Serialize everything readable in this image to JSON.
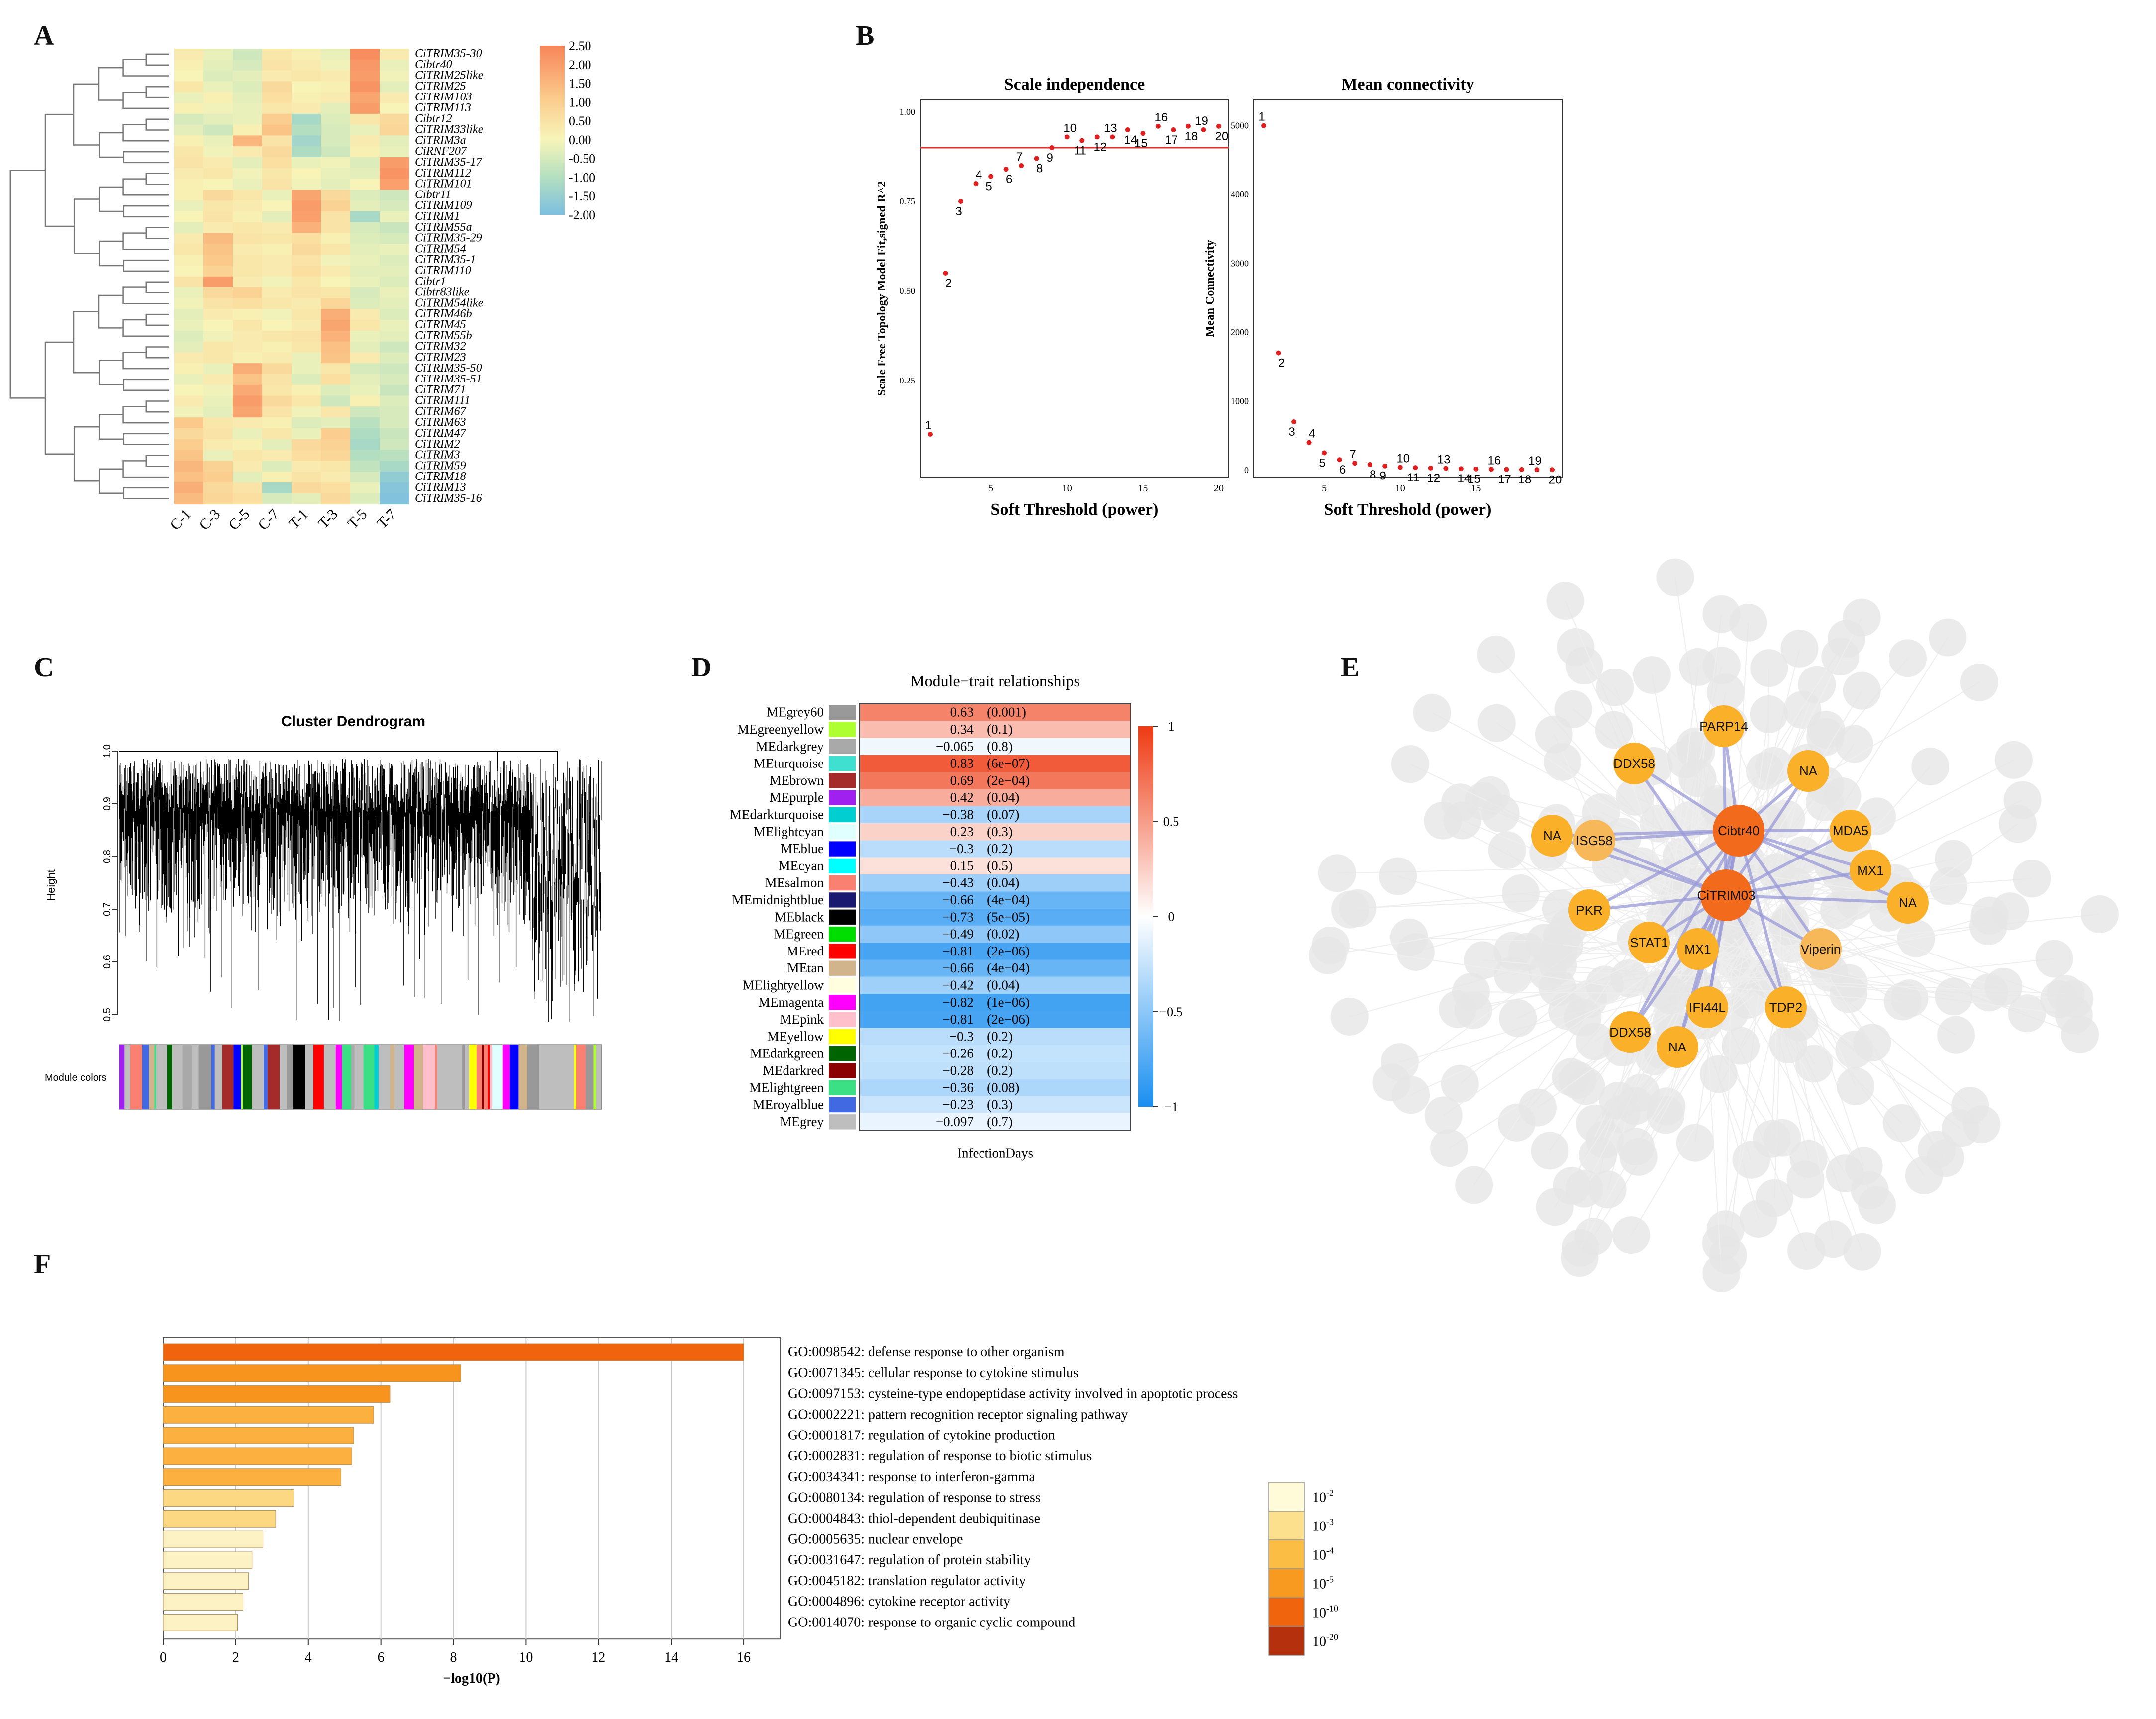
{
  "panel_labels": {
    "a": "A",
    "b": "B",
    "c": "C",
    "d": "D",
    "e": "E",
    "f": "F"
  },
  "heatmap": {
    "columns": [
      "C-1",
      "C-3",
      "C-5",
      "C-7",
      "T-1",
      "T-3",
      "T-5",
      "T-7"
    ],
    "rows": [
      "CiTRIM35-30",
      "Cibtr40",
      "CiTRIM25like",
      "CiTRIM25",
      "CiTRIM103",
      "CiTRIM113",
      "Cibtr12",
      "CiTRIM33like",
      "CiTRIM3a",
      "CiRNF207",
      "CiTRIM35-17",
      "CiTRIM112",
      "CiTRIM101",
      "Cibtr11",
      "CiTRIM109",
      "CiTRIM1",
      "CiTRIM55a",
      "CiTRIM35-29",
      "CiTRIM54",
      "CiTRIM35-1",
      "CiTRIM110",
      "Cibtr1",
      "Cibtr83like",
      "CiTRIM54like",
      "CiTRIM46b",
      "CiTRIM45",
      "CiTRIM55b",
      "CiTRIM32",
      "CiTRIM23",
      "CiTRIM35-50",
      "CiTRIM35-51",
      "CiTRIM71",
      "CiTRIM111",
      "CiTRIM67",
      "CiTRIM63",
      "CiTRIM47",
      "CiTRIM2",
      "CiTRIM3",
      "CiTRIM59",
      "CiTRIM18",
      "CiTRIM13",
      "CiTRIM35-16"
    ],
    "values": [
      [
        0.2,
        -0.2,
        -0.6,
        0.3,
        0.1,
        -0.2,
        2.3,
        0.2
      ],
      [
        0.1,
        -0.3,
        -0.5,
        0.4,
        0.2,
        -0.1,
        2.1,
        -0.2
      ],
      [
        0.0,
        -0.4,
        -0.3,
        0.2,
        0.3,
        0.2,
        2.0,
        -0.1
      ],
      [
        0.3,
        -0.2,
        -0.4,
        0.6,
        0.0,
        0.1,
        2.2,
        -0.3
      ],
      [
        -0.2,
        0.1,
        -0.3,
        0.5,
        0.1,
        0.2,
        1.8,
        0.2
      ],
      [
        0.1,
        -0.1,
        -0.2,
        0.3,
        0.2,
        -0.3,
        2.0,
        0.0
      ],
      [
        -0.5,
        -0.3,
        -0.2,
        0.9,
        -1.2,
        -0.4,
        0.3,
        0.6
      ],
      [
        -0.3,
        -0.6,
        0.1,
        1.1,
        -1.0,
        -0.5,
        -0.2,
        0.7
      ],
      [
        0.1,
        -0.2,
        1.4,
        0.4,
        -1.3,
        -0.5,
        0.2,
        -0.3
      ],
      [
        0.3,
        -0.1,
        0.2,
        0.6,
        -1.1,
        -0.6,
        0.1,
        -0.2
      ],
      [
        0.4,
        0.2,
        -0.3,
        0.5,
        -0.2,
        -0.1,
        -0.4,
        2.0
      ],
      [
        0.2,
        0.3,
        -0.1,
        0.3,
        0.0,
        -0.2,
        -0.3,
        2.2
      ],
      [
        0.1,
        0.0,
        -0.2,
        0.4,
        -0.1,
        -0.3,
        0.0,
        1.9
      ],
      [
        0.1,
        0.6,
        0.3,
        -0.2,
        1.8,
        0.6,
        -0.4,
        -0.6
      ],
      [
        -0.2,
        0.3,
        0.2,
        0.0,
        2.0,
        0.8,
        -0.3,
        -0.5
      ],
      [
        0.0,
        0.4,
        0.1,
        -0.3,
        1.9,
        0.4,
        -1.2,
        -0.2
      ],
      [
        -0.3,
        0.2,
        0.3,
        0.2,
        1.5,
        0.4,
        -0.5,
        -0.7
      ],
      [
        0.2,
        1.3,
        0.4,
        0.3,
        0.5,
        0.1,
        -0.4,
        -0.5
      ],
      [
        0.3,
        1.1,
        0.2,
        0.1,
        0.6,
        0.3,
        -0.3,
        -0.2
      ],
      [
        0.1,
        1.0,
        0.3,
        0.2,
        0.4,
        -0.1,
        -0.2,
        -0.4
      ],
      [
        0.0,
        0.8,
        0.3,
        0.2,
        0.5,
        0.2,
        -0.3,
        -0.3
      ],
      [
        0.4,
        2.0,
        0.2,
        -0.1,
        0.3,
        0.0,
        -0.2,
        -0.4
      ],
      [
        -0.2,
        0.6,
        0.8,
        0.2,
        0.4,
        0.3,
        -0.5,
        -0.2
      ],
      [
        -0.1,
        0.4,
        0.5,
        0.3,
        0.2,
        0.7,
        -0.4,
        -0.3
      ],
      [
        -0.3,
        0.2,
        0.1,
        -0.1,
        0.3,
        1.6,
        0.2,
        -0.4
      ],
      [
        -0.2,
        0.0,
        0.3,
        0.0,
        0.2,
        1.8,
        0.3,
        -0.2
      ],
      [
        -0.4,
        -0.1,
        0.2,
        0.3,
        0.4,
        1.5,
        -0.2,
        -0.3
      ],
      [
        -0.3,
        0.3,
        0.2,
        0.1,
        0.3,
        1.2,
        -0.3,
        -0.6
      ],
      [
        0.2,
        0.3,
        0.1,
        0.2,
        -0.2,
        1.1,
        0.2,
        -0.4
      ],
      [
        0.1,
        -0.2,
        1.6,
        0.6,
        -0.2,
        0.3,
        -0.5,
        -0.6
      ],
      [
        -0.2,
        0.2,
        1.1,
        0.4,
        -0.4,
        0.5,
        -0.3,
        -0.5
      ],
      [
        0.0,
        -0.1,
        1.7,
        0.3,
        0.1,
        -0.4,
        -0.2,
        -0.7
      ],
      [
        0.2,
        -0.2,
        2.0,
        0.6,
        0.3,
        -0.6,
        0.1,
        -0.4
      ],
      [
        -0.1,
        -0.3,
        1.8,
        0.4,
        -0.1,
        0.3,
        -0.6,
        -0.5
      ],
      [
        1.0,
        0.3,
        0.2,
        0.1,
        -0.4,
        -0.3,
        -0.9,
        -0.5
      ],
      [
        0.6,
        0.4,
        -0.2,
        0.3,
        -0.2,
        0.9,
        -1.1,
        -0.7
      ],
      [
        0.9,
        0.2,
        0.1,
        -0.3,
        0.6,
        0.8,
        -1.2,
        -0.6
      ],
      [
        1.1,
        -0.2,
        0.3,
        0.2,
        0.5,
        0.7,
        -1.0,
        -0.9
      ],
      [
        1.4,
        0.8,
        0.2,
        -0.4,
        0.2,
        0.3,
        -0.8,
        -1.2
      ],
      [
        1.2,
        0.9,
        -0.3,
        0.1,
        0.4,
        0.2,
        -0.5,
        -1.6
      ],
      [
        1.6,
        0.6,
        0.4,
        -1.2,
        0.6,
        0.5,
        -0.2,
        -1.8
      ],
      [
        1.3,
        0.7,
        0.5,
        -0.5,
        -0.3,
        0.6,
        -0.4,
        -1.9
      ]
    ],
    "legend_ticks": [
      "2.50",
      "2.00",
      "1.50",
      "1.00",
      "0.50",
      "0.00",
      "-0.50",
      "-1.00",
      "-1.50",
      "-2.00"
    ]
  },
  "chart_data": [
    {
      "type": "scatter",
      "title": "Scale independence",
      "xlabel": "Soft Threshold (power)",
      "ylabel": "Scale Free Topology Model Fit,signed R^2",
      "x": [
        1,
        2,
        3,
        4,
        5,
        6,
        7,
        8,
        9,
        10,
        11,
        12,
        13,
        14,
        15,
        16,
        17,
        18,
        19,
        20
      ],
      "y": [
        0.1,
        0.55,
        0.75,
        0.8,
        0.82,
        0.84,
        0.85,
        0.87,
        0.9,
        0.93,
        0.92,
        0.93,
        0.93,
        0.95,
        0.94,
        0.96,
        0.95,
        0.96,
        0.95,
        0.96
      ],
      "xlim": [
        0,
        20
      ],
      "ylim": [
        0,
        1
      ],
      "xticks": [
        "5",
        "10",
        "15",
        "20"
      ],
      "yticks": [
        "0.25",
        "0.50",
        "0.75",
        "1.00"
      ],
      "hline": 0.9
    },
    {
      "type": "scatter",
      "title": "Mean connectivity",
      "xlabel": "Soft Threshold (power)",
      "ylabel": "Mean Connectivity",
      "x": [
        1,
        2,
        3,
        4,
        5,
        6,
        7,
        8,
        9,
        10,
        11,
        12,
        13,
        14,
        15,
        16,
        17,
        18,
        19,
        20
      ],
      "y": [
        5000,
        1700,
        700,
        400,
        250,
        150,
        100,
        80,
        60,
        40,
        35,
        30,
        25,
        20,
        15,
        12,
        10,
        8,
        6,
        5
      ],
      "xlim": [
        0,
        20
      ],
      "ylim": [
        0,
        5200
      ],
      "xticks": [
        "5",
        "10",
        "15"
      ],
      "yticks": [
        "0",
        "1000",
        "2000",
        "3000",
        "4000",
        "5000"
      ]
    },
    {
      "type": "table",
      "title": "Module−trait relationships",
      "column": "InfectionDays",
      "modules": [
        {
          "name": "MEgrey60",
          "color": "#999999",
          "r": 0.63,
          "r_text": "0.63",
          "p": "(0.001)"
        },
        {
          "name": "MEgreenyellow",
          "color": "#adff2f",
          "r": 0.34,
          "r_text": "0.34",
          "p": "(0.1)"
        },
        {
          "name": "MEdarkgrey",
          "color": "#a9a9a9",
          "r": -0.065,
          "r_text": "−0.065",
          "p": "(0.8)"
        },
        {
          "name": "MEturquoise",
          "color": "#40e0d0",
          "r": 0.83,
          "r_text": "0.83",
          "p": "(6e−07)"
        },
        {
          "name": "MEbrown",
          "color": "#a52a2a",
          "r": 0.69,
          "r_text": "0.69",
          "p": "(2e−04)"
        },
        {
          "name": "MEpurple",
          "color": "#a020f0",
          "r": 0.42,
          "r_text": "0.42",
          "p": "(0.04)"
        },
        {
          "name": "MEdarkturquoise",
          "color": "#00ced1",
          "r": -0.38,
          "r_text": "−0.38",
          "p": "(0.07)"
        },
        {
          "name": "MElightcyan",
          "color": "#e0ffff",
          "r": 0.23,
          "r_text": "0.23",
          "p": "(0.3)"
        },
        {
          "name": "MEblue",
          "color": "#0000ff",
          "r": -0.3,
          "r_text": "−0.3",
          "p": "(0.2)"
        },
        {
          "name": "MEcyan",
          "color": "#00ffff",
          "r": 0.15,
          "r_text": "0.15",
          "p": "(0.5)"
        },
        {
          "name": "MEsalmon",
          "color": "#fa8072",
          "r": -0.43,
          "r_text": "−0.43",
          "p": "(0.04)"
        },
        {
          "name": "MEmidnightblue",
          "color": "#191970",
          "r": -0.66,
          "r_text": "−0.66",
          "p": "(4e−04)"
        },
        {
          "name": "MEblack",
          "color": "#000000",
          "r": -0.73,
          "r_text": "−0.73",
          "p": "(5e−05)"
        },
        {
          "name": "MEgreen",
          "color": "#00dd00",
          "r": -0.49,
          "r_text": "−0.49",
          "p": "(0.02)"
        },
        {
          "name": "MEred",
          "color": "#ff0000",
          "r": -0.81,
          "r_text": "−0.81",
          "p": "(2e−06)"
        },
        {
          "name": "MEtan",
          "color": "#d2b48c",
          "r": -0.66,
          "r_text": "−0.66",
          "p": "(4e−04)"
        },
        {
          "name": "MElightyellow",
          "color": "#ffffe0",
          "r": -0.42,
          "r_text": "−0.42",
          "p": "(0.04)"
        },
        {
          "name": "MEmagenta",
          "color": "#ff00ff",
          "r": -0.82,
          "r_text": "−0.82",
          "p": "(1e−06)"
        },
        {
          "name": "MEpink",
          "color": "#ffc0cb",
          "r": -0.81,
          "r_text": "−0.81",
          "p": "(2e−06)"
        },
        {
          "name": "MEyellow",
          "color": "#ffff00",
          "r": -0.3,
          "r_text": "−0.3",
          "p": "(0.2)"
        },
        {
          "name": "MEdarkgreen",
          "color": "#006400",
          "r": -0.26,
          "r_text": "−0.26",
          "p": "(0.2)"
        },
        {
          "name": "MEdarkred",
          "color": "#8b0000",
          "r": -0.28,
          "r_text": "−0.28",
          "p": "(0.2)"
        },
        {
          "name": "MElightgreen",
          "color": "#3ce084",
          "r": -0.36,
          "r_text": "−0.36",
          "p": "(0.08)"
        },
        {
          "name": "MEroyalblue",
          "color": "#4169e1",
          "r": -0.23,
          "r_text": "−0.23",
          "p": "(0.3)"
        },
        {
          "name": "MEgrey",
          "color": "#bebebe",
          "r": -0.097,
          "r_text": "−0.097",
          "p": "(0.7)"
        }
      ],
      "scale_ticks": [
        "1",
        "0.5",
        "0",
        "−0.5",
        "−1"
      ]
    },
    {
      "type": "bar",
      "orientation": "horizontal",
      "xlabel": "−log10(P)",
      "xlim": [
        0,
        17
      ],
      "xticks": [
        "0",
        "2",
        "4",
        "6",
        "8",
        "10",
        "12",
        "14",
        "16"
      ],
      "categories": [
        "GO:0098542: defense response to other organism",
        "GO:0071345: cellular response to cytokine stimulus",
        "GO:0097153: cysteine-type endopeptidase activity involved in apoptotic process",
        "GO:0002221: pattern recognition receptor signaling pathway",
        "GO:0001817: regulation of cytokine production",
        "GO:0002831: regulation of response to biotic stimulus",
        "GO:0034341: response to interferon-gamma",
        "GO:0080134: regulation of response to stress",
        "GO:0004843: thiol-dependent deubiquitinase",
        "GO:0005635: nuclear envelope",
        "GO:0031647: regulation of protein stability",
        "GO:0045182: translation regulator activity",
        "GO:0004896: cytokine receptor activity",
        "GO:0014070: response to organic cyclic compound"
      ],
      "values": [
        16.0,
        8.2,
        6.25,
        5.8,
        5.25,
        5.2,
        4.9,
        3.6,
        3.1,
        2.75,
        2.45,
        2.35,
        2.2,
        2.05
      ],
      "colors": [
        "#f0640e",
        "#f7941d",
        "#f7941d",
        "#fbb040",
        "#fbb040",
        "#fbb040",
        "#fbb040",
        "#fdd882",
        "#fdd882",
        "#fdf2c4",
        "#fdf2c4",
        "#fdf2c4",
        "#fdf2c4",
        "#fdf2c4"
      ],
      "legend": [
        {
          "base": "10",
          "exp": "-2",
          "color": "#fffbd8"
        },
        {
          "base": "10",
          "exp": "-3",
          "color": "#fde08e"
        },
        {
          "base": "10",
          "exp": "-4",
          "color": "#fbbd43"
        },
        {
          "base": "10",
          "exp": "-5",
          "color": "#f79a1f"
        },
        {
          "base": "10",
          "exp": "-10",
          "color": "#f0640e"
        },
        {
          "base": "10",
          "exp": "-20",
          "color": "#b5310e"
        }
      ]
    }
  ],
  "dendrogram": {
    "title": "Cluster Dendrogram",
    "ylabel": "Height",
    "yticks": [
      "1.0",
      "0.9",
      "0.8",
      "0.7",
      "0.6",
      "0.5"
    ],
    "module_label": "Module colors"
  },
  "network": {
    "nodes": [
      {
        "label": "PARP14",
        "type": "leaf"
      },
      {
        "label": "DDX58",
        "type": "leaf"
      },
      {
        "label": "NA",
        "type": "leaf"
      },
      {
        "label": "NA",
        "type": "leaf"
      },
      {
        "label": "ISG58",
        "type": "leaf-light"
      },
      {
        "label": "Cibtr40",
        "type": "hub"
      },
      {
        "label": "MDA5",
        "type": "leaf"
      },
      {
        "label": "MX1",
        "type": "leaf"
      },
      {
        "label": "CiTRIM03",
        "type": "hub"
      },
      {
        "label": "NA",
        "type": "leaf"
      },
      {
        "label": "PKR",
        "type": "leaf"
      },
      {
        "label": "STAT1",
        "type": "leaf"
      },
      {
        "label": "MX1",
        "type": "leaf"
      },
      {
        "label": "Viperin",
        "type": "leaf-light"
      },
      {
        "label": "IFI44L",
        "type": "leaf"
      },
      {
        "label": "TDP2",
        "type": "leaf"
      },
      {
        "label": "DDX58",
        "type": "leaf"
      },
      {
        "label": "NA",
        "type": "leaf"
      }
    ]
  }
}
